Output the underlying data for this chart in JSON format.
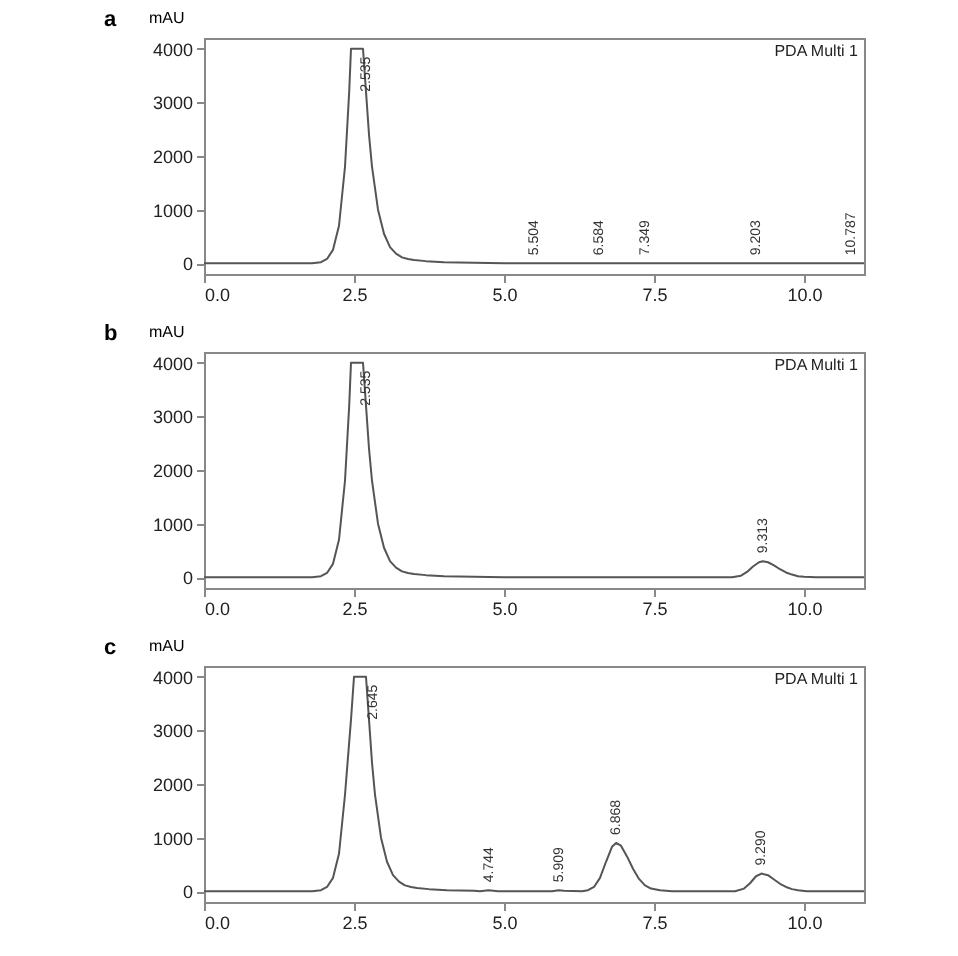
{
  "chart_data": [
    {
      "type": "line",
      "title": "a",
      "ylabel": "mAU",
      "xlim": [
        0,
        11
      ],
      "ylim": [
        -200,
        4200
      ],
      "xticks": [
        {
          "value": 0,
          "label": "0.0"
        },
        {
          "value": 2.5,
          "label": "2.5"
        },
        {
          "value": 5,
          "label": "5.0"
        },
        {
          "value": 7.5,
          "label": "7.5"
        },
        {
          "value": 10,
          "label": "10.0"
        }
      ],
      "yticks": [
        0,
        1000,
        2000,
        3000,
        4000
      ],
      "grid": false,
      "series": [
        {
          "color": "#555555",
          "x": [
            0,
            1.0,
            1.8,
            1.95,
            2.05,
            2.15,
            2.25,
            2.35,
            2.42,
            2.45,
            2.65,
            2.7,
            2.75,
            2.8,
            2.9,
            3.0,
            3.1,
            3.2,
            3.3,
            3.4,
            3.5,
            3.7,
            4.0,
            4.5,
            5.0,
            5.5,
            6.0,
            7.0,
            8.0,
            9.0,
            10.0,
            11.0
          ],
          "values": [
            0,
            0,
            0,
            20,
            80,
            250,
            700,
            1800,
            3200,
            4000,
            4000,
            3200,
            2400,
            1800,
            1000,
            550,
            300,
            180,
            110,
            80,
            60,
            40,
            20,
            10,
            0,
            0,
            0,
            0,
            0,
            0,
            0,
            0
          ]
        }
      ],
      "annotations": [
        "PDA Multi 1",
        {
          "text": "2.535",
          "x": 2.535,
          "y": 4000
        },
        {
          "text": "5.504",
          "x": 5.504,
          "y": 0
        },
        {
          "text": "6.584",
          "x": 6.584,
          "y": 0
        },
        {
          "text": "7.349",
          "x": 7.349,
          "y": 0
        },
        {
          "text": "9.203",
          "x": 9.203,
          "y": 0
        },
        {
          "text": "10.787",
          "x": 10.787,
          "y": 0
        }
      ]
    },
    {
      "type": "line",
      "title": "b",
      "ylabel": "mAU",
      "xlim": [
        0,
        11
      ],
      "ylim": [
        -200,
        4200
      ],
      "xticks": [
        {
          "value": 0,
          "label": "0.0"
        },
        {
          "value": 2.5,
          "label": "2.5"
        },
        {
          "value": 5,
          "label": "5.0"
        },
        {
          "value": 7.5,
          "label": "7.5"
        },
        {
          "value": 10,
          "label": "10.0"
        }
      ],
      "yticks": [
        0,
        1000,
        2000,
        3000,
        4000
      ],
      "grid": false,
      "series": [
        {
          "color": "#555555",
          "x": [
            0,
            1.0,
            1.8,
            1.95,
            2.05,
            2.15,
            2.25,
            2.35,
            2.42,
            2.45,
            2.65,
            2.7,
            2.75,
            2.8,
            2.9,
            3.0,
            3.1,
            3.2,
            3.3,
            3.4,
            3.5,
            3.7,
            4.0,
            4.5,
            5.0,
            8.8,
            8.95,
            9.05,
            9.15,
            9.25,
            9.313,
            9.4,
            9.5,
            9.6,
            9.7,
            9.8,
            9.9,
            10.0,
            10.2,
            11.0
          ],
          "values": [
            0,
            0,
            0,
            20,
            80,
            250,
            700,
            1800,
            3200,
            4000,
            4000,
            3200,
            2400,
            1800,
            1000,
            550,
            300,
            180,
            110,
            80,
            60,
            40,
            20,
            10,
            0,
            0,
            30,
            100,
            200,
            280,
            300,
            280,
            220,
            150,
            90,
            50,
            20,
            10,
            0,
            0
          ]
        }
      ],
      "annotations": [
        "PDA Multi 1",
        {
          "text": "2.535",
          "x": 2.535,
          "y": 4000
        },
        {
          "text": "9.313",
          "x": 9.313,
          "y": 300
        }
      ]
    },
    {
      "type": "line",
      "title": "c",
      "ylabel": "mAU",
      "xlim": [
        0,
        11
      ],
      "ylim": [
        -200,
        4200
      ],
      "xticks": [
        {
          "value": 0,
          "label": "0.0"
        },
        {
          "value": 2.5,
          "label": "2.5"
        },
        {
          "value": 5,
          "label": "5.0"
        },
        {
          "value": 7.5,
          "label": "7.5"
        },
        {
          "value": 10,
          "label": "10.0"
        }
      ],
      "yticks": [
        0,
        1000,
        2000,
        3000,
        4000
      ],
      "grid": false,
      "series": [
        {
          "color": "#555555",
          "x": [
            0,
            1.0,
            1.8,
            1.95,
            2.05,
            2.15,
            2.25,
            2.35,
            2.45,
            2.5,
            2.7,
            2.75,
            2.8,
            2.85,
            2.95,
            3.05,
            3.15,
            3.25,
            3.35,
            3.45,
            3.55,
            3.75,
            4.05,
            4.5,
            4.6,
            4.744,
            4.9,
            5.8,
            5.909,
            6.0,
            6.3,
            6.4,
            6.5,
            6.6,
            6.7,
            6.8,
            6.868,
            6.95,
            7.05,
            7.15,
            7.25,
            7.35,
            7.45,
            7.6,
            7.8,
            8.85,
            9.0,
            9.1,
            9.2,
            9.29,
            9.4,
            9.5,
            9.6,
            9.7,
            9.8,
            9.9,
            10.05,
            11.0
          ],
          "values": [
            0,
            0,
            0,
            20,
            80,
            250,
            700,
            1800,
            3200,
            4000,
            4000,
            3200,
            2400,
            1800,
            1000,
            550,
            300,
            180,
            110,
            80,
            60,
            40,
            20,
            10,
            0,
            20,
            0,
            0,
            20,
            10,
            0,
            20,
            80,
            250,
            550,
            830,
            900,
            850,
            650,
            420,
            230,
            110,
            50,
            20,
            0,
            0,
            50,
            150,
            280,
            330,
            300,
            220,
            140,
            80,
            40,
            20,
            0,
            0
          ]
        }
      ],
      "annotations": [
        "PDA Multi 1",
        {
          "text": "2.645",
          "x": 2.645,
          "y": 4000
        },
        {
          "text": "4.744",
          "x": 4.744,
          "y": 20
        },
        {
          "text": "5.909",
          "x": 5.909,
          "y": 20
        },
        {
          "text": "6.868",
          "x": 6.868,
          "y": 900
        },
        {
          "text": "9.290",
          "x": 9.29,
          "y": 330
        }
      ]
    }
  ]
}
